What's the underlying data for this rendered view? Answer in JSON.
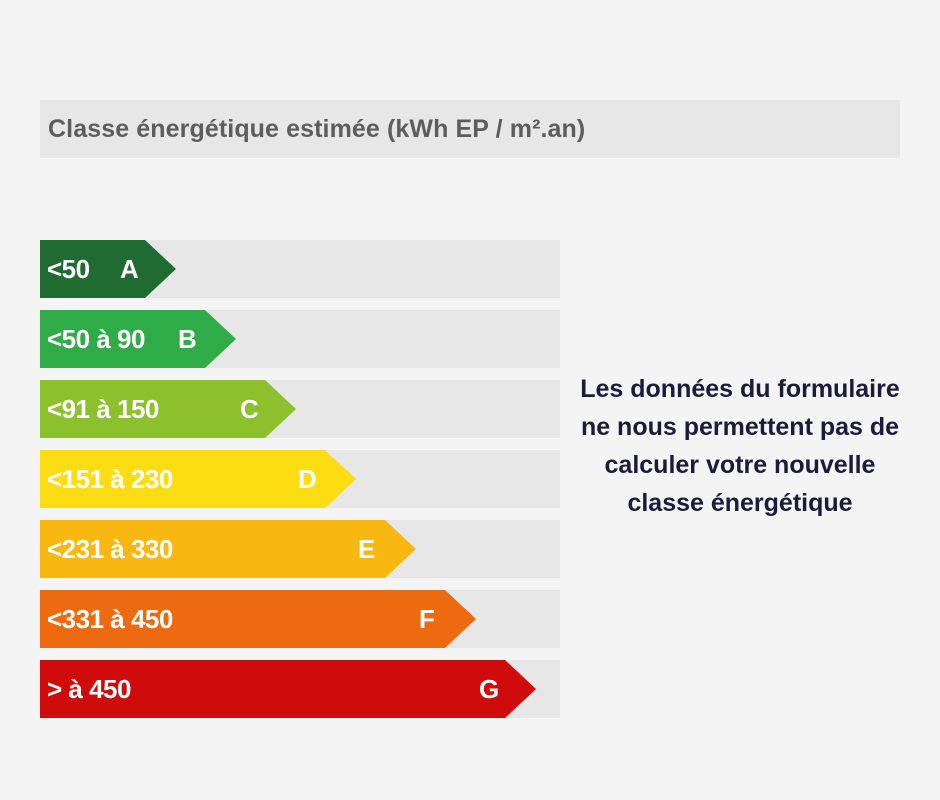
{
  "header": {
    "title": "Classe énergétique estimée (kWh EP / m².an)"
  },
  "energy_classes": [
    {
      "range": "<50",
      "letter": "A",
      "color": "#1f6b32"
    },
    {
      "range": "<50 à 90",
      "letter": "B",
      "color": "#2fab47"
    },
    {
      "range": "<91 à 150",
      "letter": "C",
      "color": "#8cc02d"
    },
    {
      "range": "<151 à 230",
      "letter": "D",
      "color": "#fcdc13"
    },
    {
      "range": "<231 à 330",
      "letter": "E",
      "color": "#f8b811"
    },
    {
      "range": "<331 à 450",
      "letter": "F",
      "color": "#ed6a11"
    },
    {
      "range": "> à 450",
      "letter": "G",
      "color": "#cf0b0b"
    }
  ],
  "message": {
    "text": "Les données du formulaire ne nous permettent pas de calculer votre nouvelle classe énergétique"
  }
}
